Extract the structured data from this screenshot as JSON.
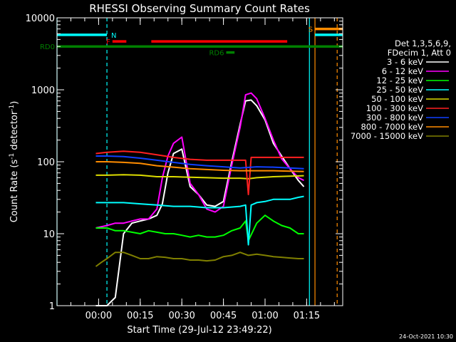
{
  "chart_data": {
    "type": "line",
    "title": "RHESSI Observing Summary Count Rates",
    "xlabel": "Start Time (29-Jul-12 23:49:22)",
    "ylabel": "Count Rate (s⁻¹ detector⁻¹)",
    "ylabel_main": "Count Rate (s",
    "ylabel_sup1": "-1",
    "ylabel_mid": " detector",
    "ylabel_sup2": "-1",
    "ylabel_end": ")",
    "y_scale": "log",
    "ylim": [
      1,
      10000
    ],
    "xlim_minutes_after_start": [
      -4.4,
      98.6
    ],
    "y_ticks": [
      1,
      10,
      100,
      1000,
      10000
    ],
    "y_tick_labels": [
      "1",
      "10",
      "100",
      "1000",
      "10000"
    ],
    "x_ticks_minutes_after_start": [
      10.6,
      25.6,
      40.6,
      55.6,
      70.6,
      85.6
    ],
    "x_tick_labels": [
      "00:00",
      "00:15",
      "00:30",
      "00:45",
      "01:00",
      "01:15"
    ],
    "legend_header": [
      "Det 1,3,5,6,9,",
      "FDecim 1, Att 0"
    ],
    "legend_position": "right",
    "footer_date": "24-Oct-2021 10:30",
    "series": [
      {
        "name": "3 - 6 keV",
        "color": "#ffffff",
        "x": [
          9.6,
          13.6,
          16.6,
          19.6,
          22.6,
          25.6,
          28.6,
          31.6,
          33.6,
          35.6,
          37.6,
          40.6,
          43.6,
          46.6,
          49.6,
          52.6,
          55.6,
          58.6,
          61.6,
          63.6,
          65.6,
          67.6,
          70.6,
          73.6,
          76.6,
          79.6,
          82.6,
          84.6
        ],
        "values": [
          1,
          1,
          1.3,
          10,
          14,
          15,
          16,
          18,
          26,
          70,
          130,
          150,
          45,
          35,
          25,
          24,
          28,
          100,
          330,
          700,
          720,
          600,
          380,
          180,
          120,
          80,
          55,
          45
        ]
      },
      {
        "name": "6 - 12 keV",
        "color": "#ff00ff",
        "x": [
          9.6,
          13.6,
          16.6,
          19.6,
          22.6,
          25.6,
          28.6,
          31.6,
          33.6,
          35.6,
          37.6,
          40.6,
          43.6,
          46.6,
          49.6,
          52.6,
          55.6,
          58.6,
          61.6,
          63.6,
          65.6,
          67.6,
          70.6,
          73.6,
          76.6,
          79.6,
          82.6,
          84.6
        ],
        "values": [
          12,
          13,
          14,
          14,
          15,
          16,
          16,
          22,
          60,
          120,
          180,
          220,
          50,
          35,
          22,
          20,
          24,
          90,
          300,
          850,
          900,
          750,
          400,
          200,
          110,
          80,
          60,
          55
        ]
      },
      {
        "name": "12 - 25 keV",
        "color": "#00ff00",
        "x": [
          9.6,
          13.6,
          16.6,
          19.6,
          22.6,
          25.6,
          28.6,
          31.6,
          34.6,
          37.6,
          40.6,
          43.6,
          46.6,
          49.6,
          52.6,
          55.6,
          58.6,
          61.6,
          63.6,
          64.6,
          67.6,
          70.6,
          73.6,
          76.6,
          79.6,
          82.6,
          84.6
        ],
        "values": [
          12,
          12,
          11,
          11,
          10.5,
          10,
          11,
          10.5,
          10,
          10,
          9.5,
          9,
          9.5,
          9,
          9,
          9.5,
          11,
          12,
          15,
          8,
          14,
          18,
          15,
          13,
          12,
          10,
          10
        ]
      },
      {
        "name": "25 - 50 keV",
        "color": "#00ffff",
        "x": [
          9.6,
          13.6,
          19.6,
          25.6,
          31.6,
          37.6,
          43.6,
          49.6,
          55.6,
          61.6,
          63.6,
          64.6,
          65.6,
          67.6,
          70.6,
          73.6,
          76.6,
          79.6,
          82.6,
          84.6
        ],
        "values": [
          27,
          27,
          27,
          26,
          25,
          24,
          24,
          23,
          23,
          24,
          25,
          7,
          25,
          27,
          28,
          30,
          30,
          30,
          32,
          33
        ]
      },
      {
        "name": "50 - 100 keV",
        "color": "#dddd00",
        "x": [
          9.6,
          13.6,
          19.6,
          25.6,
          31.6,
          37.6,
          43.6,
          49.6,
          55.6,
          61.6,
          64.6,
          67.6,
          73.6,
          79.6,
          84.6
        ],
        "values": [
          65,
          65,
          66,
          65,
          62,
          62,
          61,
          60,
          59,
          59,
          58,
          60,
          62,
          63,
          64
        ]
      },
      {
        "name": "100 - 300 keV",
        "color": "#ff2020",
        "x": [
          9.6,
          13.6,
          19.6,
          25.6,
          31.6,
          37.6,
          43.6,
          49.6,
          55.6,
          61.6,
          63.6,
          64.6,
          65.6,
          67.6,
          73.6,
          79.6,
          84.6
        ],
        "values": [
          130,
          135,
          140,
          135,
          125,
          115,
          108,
          105,
          105,
          105,
          105,
          35,
          115,
          115,
          115,
          115,
          115
        ]
      },
      {
        "name": "300 - 800 keV",
        "color": "#1040ff",
        "x": [
          9.6,
          13.6,
          19.6,
          25.6,
          31.6,
          37.6,
          43.6,
          49.6,
          55.6,
          61.6,
          67.6,
          73.6,
          79.6,
          84.6
        ],
        "values": [
          120,
          120,
          118,
          112,
          105,
          98,
          92,
          88,
          85,
          82,
          85,
          84,
          82,
          80
        ]
      },
      {
        "name": "800 - 7000 keV",
        "color": "#ff8c00",
        "x": [
          9.6,
          13.6,
          19.6,
          25.6,
          31.6,
          37.6,
          43.6,
          49.6,
          55.6,
          61.6,
          67.6,
          73.6,
          79.6,
          84.6
        ],
        "values": [
          100,
          100,
          98,
          95,
          88,
          84,
          80,
          78,
          76,
          75,
          75,
          75,
          74,
          73
        ]
      },
      {
        "name": "7000 - 15000 keV",
        "color": "#808000",
        "x": [
          9.6,
          11.6,
          13.6,
          16.6,
          19.6,
          22.6,
          25.6,
          28.6,
          31.6,
          34.6,
          37.6,
          40.6,
          43.6,
          46.6,
          49.6,
          52.6,
          55.6,
          58.6,
          61.6,
          64.6,
          67.6,
          70.6,
          73.6,
          76.6,
          79.6,
          82.6,
          84.6
        ],
        "values": [
          3.5,
          4,
          4.5,
          5.5,
          5.5,
          5,
          4.5,
          4.5,
          4.8,
          4.7,
          4.5,
          4.5,
          4.3,
          4.3,
          4.2,
          4.3,
          4.8,
          5,
          5.5,
          5,
          5.2,
          5,
          4.8,
          4.7,
          4.6,
          4.5,
          4.5
        ]
      }
    ],
    "flag_bars": [
      {
        "label": "N",
        "color": "#00ffff",
        "x_start": -4.4,
        "x_end": 13.6,
        "y": 5800
      },
      {
        "label": "",
        "color": "#00ffff",
        "x_start": 88.6,
        "x_end": 98.6,
        "y": 5800
      },
      {
        "label": "S",
        "color": "#ff8c00",
        "x_start": 88.6,
        "x_end": 98.6,
        "y": 7000
      },
      {
        "label": "F",
        "color": "#ff0000",
        "x_start": 15.6,
        "x_end": 20.6,
        "y": 4700
      },
      {
        "label": "",
        "color": "#ff0000",
        "x_start": 29.6,
        "x_end": 78.6,
        "y": 4700
      },
      {
        "label": "RD0",
        "color": "#008000",
        "x_start": -4.4,
        "x_end": 98.6,
        "y": 4000
      },
      {
        "label": "RD6",
        "color": "#008000",
        "x_start": 56.6,
        "x_end": 59.6,
        "y": 3300
      }
    ],
    "vertical_markers": [
      {
        "x": -4.4,
        "color": "#00ffff",
        "style": "solid"
      },
      {
        "x": 13.6,
        "color": "#00ffff",
        "style": "dashed"
      },
      {
        "x": 86.6,
        "color": "#00ffff",
        "style": "solid"
      },
      {
        "x": 88.6,
        "color": "#ff8c00",
        "style": "solid"
      },
      {
        "x": 96.6,
        "color": "#ff8c00",
        "style": "dashed"
      }
    ]
  }
}
